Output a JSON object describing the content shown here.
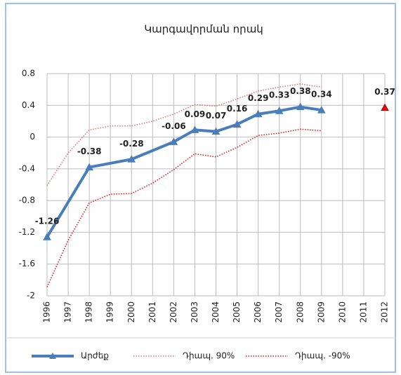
{
  "chart_data": {
    "type": "line",
    "title": "Կարգավորման որակ",
    "xlim": [
      1996,
      2012
    ],
    "xticks": [
      1996,
      1997,
      1998,
      1999,
      2000,
      2001,
      2002,
      2003,
      2004,
      2005,
      2006,
      2007,
      2008,
      2009,
      2010,
      2011,
      2012
    ],
    "ylim": [
      -2,
      0.8
    ],
    "yticks": [
      0.8,
      0.4,
      0,
      -0.4,
      -0.8,
      -1.2,
      -1.6,
      -2
    ],
    "grid": true,
    "legend": "bottom",
    "series": [
      {
        "name": "Արժեք",
        "color": "#4a7ebb",
        "style": "solid",
        "marker": "triangle",
        "labels": true,
        "x": [
          1996,
          1998,
          2000,
          2002,
          2003,
          2004,
          2005,
          2006,
          2007,
          2008,
          2009
        ],
        "values": [
          -1.26,
          -0.38,
          -0.28,
          -0.06,
          0.09,
          0.07,
          0.16,
          0.29,
          0.33,
          0.38,
          0.34
        ]
      },
      {
        "name": "Դիապ. 90%",
        "color": "#e07070",
        "style": "dotted",
        "x": [
          1996,
          1997,
          1998,
          1999,
          2000,
          2001,
          2002,
          2003,
          2004,
          2005,
          2006,
          2007,
          2008,
          2009
        ],
        "values": [
          -0.61,
          -0.2,
          0.09,
          0.14,
          0.14,
          0.2,
          0.29,
          0.41,
          0.39,
          0.48,
          0.58,
          0.63,
          0.67,
          0.63
        ]
      },
      {
        "name": "Դիապ. -90%",
        "color": "#e01010",
        "style": "dotted",
        "x": [
          1996,
          1997,
          1998,
          1999,
          2000,
          2001,
          2002,
          2003,
          2004,
          2005,
          2006,
          2007,
          2008,
          2009
        ],
        "values": [
          -1.89,
          -1.3,
          -0.83,
          -0.72,
          -0.71,
          -0.58,
          -0.41,
          -0.21,
          -0.25,
          -0.13,
          0.02,
          0.05,
          0.1,
          0.08
        ]
      },
      {
        "color": "#e01010",
        "style": "none",
        "marker": "triangle",
        "labels": true,
        "x": [
          2012
        ],
        "values": [
          0.37
        ]
      }
    ]
  }
}
